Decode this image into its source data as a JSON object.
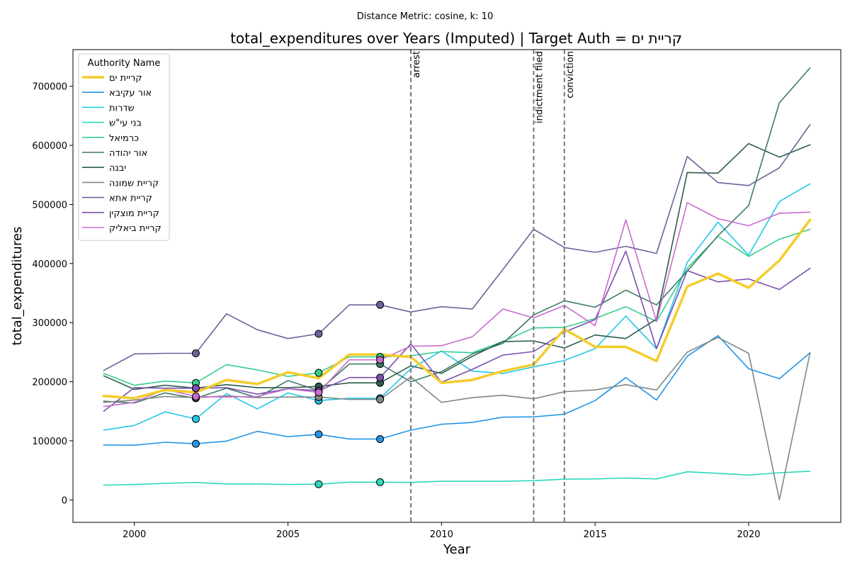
{
  "suptitle": "Distance Metric: cosine, k: 10",
  "chart_data": {
    "type": "line",
    "title": "total_expenditures over Years (Imputed) | Target Auth = קריית ים",
    "xlabel": "Year",
    "ylabel": "total_expenditures",
    "xlim": [
      1998,
      2023
    ],
    "ylim": [
      -38000,
      762000
    ],
    "x_ticks": [
      2000,
      2005,
      2010,
      2015,
      2020
    ],
    "y_ticks": [
      0,
      100000,
      200000,
      300000,
      400000,
      500000,
      600000,
      700000
    ],
    "grid": false,
    "legend": {
      "title": "Authority Name",
      "placement": "top-left"
    },
    "events": [
      {
        "x": 2009,
        "label": "arrest"
      },
      {
        "x": 2013,
        "label": "indictment filed"
      },
      {
        "x": 2014,
        "label": "conviction"
      }
    ],
    "x": [
      1999,
      2000,
      2001,
      2002,
      2003,
      2004,
      2005,
      2006,
      2007,
      2008,
      2009,
      2010,
      2011,
      2012,
      2013,
      2014,
      2015,
      2016,
      2017,
      2018,
      2019,
      2020,
      2021,
      2022
    ],
    "series": [
      {
        "name": "קריית ים",
        "color": "#f4cc2a",
        "width": 3.5,
        "target": true,
        "values": [
          176000,
          172000,
          186000,
          182000,
          203000,
          196000,
          216000,
          206000,
          246000,
          246000,
          242000,
          198000,
          203000,
          218000,
          229000,
          289000,
          259000,
          259000,
          235000,
          361000,
          383000,
          359000,
          405000,
          474000
        ],
        "imputed": []
      },
      {
        "name": "אור עקיבא",
        "color": "#2394e6",
        "width": 1.6,
        "values": [
          93000,
          92500,
          97500,
          95000,
          99500,
          116000,
          107000,
          111000,
          103000,
          103000,
          118000,
          128000,
          131000,
          140000,
          140500,
          145000,
          168000,
          207000,
          169000,
          243000,
          278000,
          222000,
          205000,
          249000
        ],
        "imputed": [
          2002,
          2006,
          2008
        ]
      },
      {
        "name": "שדרות",
        "color": "#22c7e8",
        "width": 1.6,
        "values": [
          118000,
          126000,
          149000,
          137000,
          180000,
          154000,
          181000,
          168000,
          172000,
          172000,
          222000,
          252000,
          218000,
          214000,
          225000,
          236000,
          256000,
          311000,
          256000,
          402000,
          470000,
          414000,
          505000,
          535000
        ],
        "imputed": [
          2002,
          2006,
          2008
        ]
      },
      {
        "name": "בני עי\"ש",
        "color": "#2bd9bb",
        "width": 1.6,
        "values": [
          25000,
          26000,
          28000,
          29500,
          27000,
          27000,
          26000,
          26500,
          30000,
          30000,
          29500,
          31500,
          31500,
          31500,
          32500,
          35000,
          35500,
          37000,
          35500,
          47500,
          45000,
          42000,
          46000,
          48500
        ],
        "imputed": [
          2006,
          2008
        ]
      },
      {
        "name": "כרמיאל",
        "color": "#36ce8c",
        "width": 1.6,
        "values": [
          214000,
          194000,
          201000,
          198000,
          229000,
          220000,
          209000,
          215000,
          242000,
          242000,
          244000,
          251000,
          249000,
          268000,
          291000,
          292000,
          307000,
          327000,
          302000,
          392000,
          446000,
          412000,
          441000,
          458000
        ],
        "imputed": [
          2002,
          2006,
          2008
        ]
      },
      {
        "name": "אור יהודה",
        "color": "#3d7c66",
        "width": 1.6,
        "values": [
          167000,
          164000,
          181000,
          172000,
          189000,
          173000,
          202000,
          185000,
          230000,
          230000,
          200000,
          217000,
          247000,
          265000,
          313000,
          337000,
          326000,
          355000,
          330000,
          387000,
          447000,
          498000,
          672000,
          731000
        ],
        "imputed": [
          2002,
          2006,
          2008
        ]
      },
      {
        "name": "יבנה",
        "color": "#2d5c4a",
        "width": 1.6,
        "values": [
          210000,
          187000,
          194000,
          189000,
          195000,
          190000,
          190000,
          192000,
          198000,
          198000,
          227000,
          214000,
          243000,
          268000,
          269000,
          257000,
          279000,
          273000,
          306000,
          554000,
          553000,
          603000,
          580000,
          601000
        ],
        "imputed": [
          2002,
          2006,
          2008
        ]
      },
      {
        "name": "קריית שמונה",
        "color": "#7d8a86",
        "width": 1.6,
        "values": [
          165000,
          169000,
          175000,
          173000,
          176000,
          173000,
          174000,
          174000,
          170000,
          170000,
          208000,
          165000,
          173000,
          177000,
          171000,
          183000,
          186000,
          195000,
          186000,
          250000,
          275000,
          248000,
          0,
          249000
        ],
        "imputed": [
          2002,
          2006,
          2008
        ]
      },
      {
        "name": "קריית אתא",
        "color": "#6a6499",
        "width": 1.6,
        "values": [
          219000,
          247000,
          248000,
          248000,
          315000,
          288000,
          273000,
          281000,
          330000,
          330000,
          318000,
          327000,
          323000,
          390000,
          458000,
          427000,
          419000,
          429000,
          417000,
          581000,
          537000,
          532000,
          562000,
          635000
        ],
        "imputed": [
          2002,
          2006,
          2008
        ]
      },
      {
        "name": "קריית מוצקין",
        "color": "#7b4fb0",
        "width": 1.6,
        "values": [
          150000,
          190000,
          189000,
          189000,
          190000,
          179000,
          188000,
          185000,
          207000,
          207000,
          264000,
          199000,
          221000,
          245000,
          251000,
          284000,
          305000,
          421000,
          256000,
          388000,
          369000,
          374000,
          356000,
          392000
        ],
        "imputed": [
          2002,
          2006,
          2008
        ]
      },
      {
        "name": "קריית ביאליק",
        "color": "#c96bd1",
        "width": 1.6,
        "values": [
          158000,
          165000,
          187000,
          175000,
          174000,
          175000,
          188000,
          182000,
          237000,
          237000,
          260000,
          261000,
          276000,
          323000,
          308000,
          329000,
          295000,
          474000,
          302000,
          503000,
          476000,
          464000,
          485000,
          487000
        ],
        "imputed": [
          2002,
          2006,
          2008
        ]
      }
    ]
  }
}
